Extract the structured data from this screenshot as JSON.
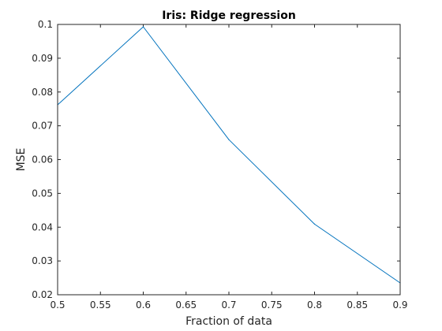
{
  "chart_data": {
    "type": "line",
    "title": "Iris: Ridge regression",
    "xlabel": "Fraction of data",
    "ylabel": "MSE",
    "xlim": [
      0.5,
      0.9
    ],
    "ylim": [
      0.02,
      0.1
    ],
    "xticks": [
      "0.5",
      "0.55",
      "0.6",
      "0.65",
      "0.7",
      "0.75",
      "0.8",
      "0.85",
      "0.9"
    ],
    "yticks": [
      "0.02",
      "0.03",
      "0.04",
      "0.05",
      "0.06",
      "0.07",
      "0.08",
      "0.09",
      "0.1"
    ],
    "grid": false,
    "series": [
      {
        "color": "#0072bd",
        "x": [
          0.5,
          0.6,
          0.7,
          0.8,
          0.9
        ],
        "y": [
          0.0762,
          0.0993,
          0.0659,
          0.0409,
          0.0235
        ]
      }
    ]
  }
}
